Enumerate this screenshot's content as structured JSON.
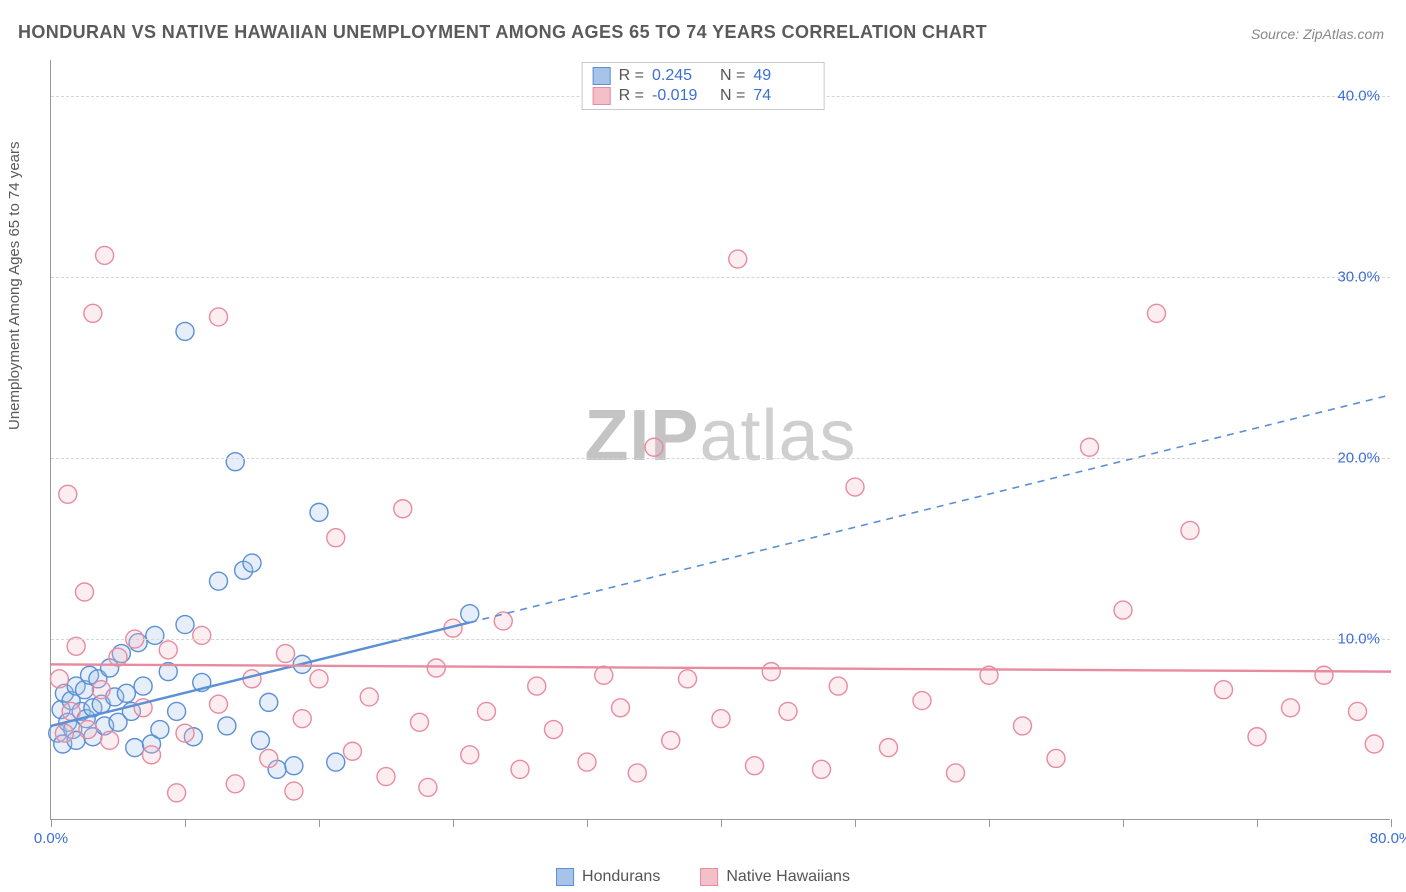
{
  "title": "HONDURAN VS NATIVE HAWAIIAN UNEMPLOYMENT AMONG AGES 65 TO 74 YEARS CORRELATION CHART",
  "source": "Source: ZipAtlas.com",
  "ylabel": "Unemployment Among Ages 65 to 74 years",
  "watermark_zip": "ZIP",
  "watermark_atlas": "atlas",
  "chart": {
    "type": "scatter",
    "background_color": "#ffffff",
    "grid_color": "#d6d6d6",
    "axis_color": "#999999",
    "label_color": "#5a5a5a",
    "tick_font_color": "#3b6fd6",
    "tick_fontsize": 15,
    "label_fontsize": 15,
    "title_fontsize": 18,
    "marker_radius": 9,
    "marker_fill_opacity": 0.28,
    "marker_stroke_width": 1.4,
    "xlim": [
      0,
      80
    ],
    "ylim": [
      0,
      42
    ],
    "y_ticks": [
      10,
      20,
      30,
      40
    ],
    "y_tick_labels": [
      "10.0%",
      "20.0%",
      "30.0%",
      "40.0%"
    ],
    "x_ticks": [
      0,
      8,
      16,
      24,
      32,
      40,
      48,
      56,
      64,
      72,
      80
    ],
    "x_end_labels": {
      "0": "0.0%",
      "80": "80.0%"
    }
  },
  "series": [
    {
      "name": "Hondurans",
      "stroke": "#5b8fd6",
      "fill": "#a7c4e8",
      "R": "0.245",
      "N": "49",
      "trend": {
        "x1": 0,
        "y1": 5.2,
        "x2": 80,
        "y2": 23.5,
        "solid_until_x": 25
      },
      "points": [
        [
          0.4,
          4.8
        ],
        [
          0.6,
          6.1
        ],
        [
          0.7,
          4.2
        ],
        [
          0.8,
          7.0
        ],
        [
          1.0,
          5.4
        ],
        [
          1.2,
          6.6
        ],
        [
          1.3,
          5.0
        ],
        [
          1.5,
          7.4
        ],
        [
          1.5,
          4.4
        ],
        [
          1.8,
          6.0
        ],
        [
          2.0,
          7.2
        ],
        [
          2.1,
          5.6
        ],
        [
          2.3,
          8.0
        ],
        [
          2.5,
          6.2
        ],
        [
          2.5,
          4.6
        ],
        [
          2.8,
          7.8
        ],
        [
          3.0,
          6.4
        ],
        [
          3.2,
          5.2
        ],
        [
          3.5,
          8.4
        ],
        [
          3.8,
          6.8
        ],
        [
          4.0,
          5.4
        ],
        [
          4.2,
          9.2
        ],
        [
          4.5,
          7.0
        ],
        [
          4.8,
          6.0
        ],
        [
          5.0,
          4.0
        ],
        [
          5.2,
          9.8
        ],
        [
          5.5,
          7.4
        ],
        [
          6.0,
          4.2
        ],
        [
          6.2,
          10.2
        ],
        [
          6.5,
          5.0
        ],
        [
          7.0,
          8.2
        ],
        [
          7.5,
          6.0
        ],
        [
          8.0,
          10.8
        ],
        [
          8.0,
          27.0
        ],
        [
          8.5,
          4.6
        ],
        [
          9.0,
          7.6
        ],
        [
          10.0,
          13.2
        ],
        [
          10.5,
          5.2
        ],
        [
          11.0,
          19.8
        ],
        [
          11.5,
          13.8
        ],
        [
          12.0,
          14.2
        ],
        [
          12.5,
          4.4
        ],
        [
          13.0,
          6.5
        ],
        [
          13.5,
          2.8
        ],
        [
          14.5,
          3.0
        ],
        [
          15.0,
          8.6
        ],
        [
          16.0,
          17.0
        ],
        [
          17.0,
          3.2
        ],
        [
          25.0,
          11.4
        ]
      ]
    },
    {
      "name": "Native Hawaiians",
      "stroke": "#e88ba0",
      "fill": "#f3bfc9",
      "R": "-0.019",
      "N": "74",
      "trend": {
        "x1": 0,
        "y1": 8.6,
        "x2": 80,
        "y2": 8.2,
        "solid_until_x": 80
      },
      "points": [
        [
          0.5,
          7.8
        ],
        [
          0.8,
          4.8
        ],
        [
          1.0,
          18.0
        ],
        [
          1.2,
          6.0
        ],
        [
          1.5,
          9.6
        ],
        [
          2.0,
          12.6
        ],
        [
          2.2,
          5.0
        ],
        [
          2.5,
          28.0
        ],
        [
          3.0,
          7.2
        ],
        [
          3.2,
          31.2
        ],
        [
          3.5,
          4.4
        ],
        [
          4.0,
          9.0
        ],
        [
          5.0,
          10.0
        ],
        [
          5.5,
          6.2
        ],
        [
          6.0,
          3.6
        ],
        [
          7.0,
          9.4
        ],
        [
          7.5,
          1.5
        ],
        [
          8.0,
          4.8
        ],
        [
          9.0,
          10.2
        ],
        [
          10.0,
          6.4
        ],
        [
          10.0,
          27.8
        ],
        [
          11.0,
          2.0
        ],
        [
          12.0,
          7.8
        ],
        [
          13.0,
          3.4
        ],
        [
          14.0,
          9.2
        ],
        [
          14.5,
          1.6
        ],
        [
          15.0,
          5.6
        ],
        [
          16.0,
          7.8
        ],
        [
          17.0,
          15.6
        ],
        [
          18.0,
          3.8
        ],
        [
          19.0,
          6.8
        ],
        [
          20.0,
          2.4
        ],
        [
          21.0,
          17.2
        ],
        [
          22.0,
          5.4
        ],
        [
          22.5,
          1.8
        ],
        [
          23.0,
          8.4
        ],
        [
          24.0,
          10.6
        ],
        [
          25.0,
          3.6
        ],
        [
          26.0,
          6.0
        ],
        [
          27.0,
          11.0
        ],
        [
          28.0,
          2.8
        ],
        [
          29.0,
          7.4
        ],
        [
          30.0,
          5.0
        ],
        [
          32.0,
          3.2
        ],
        [
          33.0,
          8.0
        ],
        [
          34.0,
          6.2
        ],
        [
          35.0,
          2.6
        ],
        [
          36.0,
          20.6
        ],
        [
          37.0,
          4.4
        ],
        [
          38.0,
          7.8
        ],
        [
          40.0,
          5.6
        ],
        [
          41.0,
          31.0
        ],
        [
          42.0,
          3.0
        ],
        [
          43.0,
          8.2
        ],
        [
          44.0,
          6.0
        ],
        [
          46.0,
          2.8
        ],
        [
          47.0,
          7.4
        ],
        [
          48.0,
          18.4
        ],
        [
          50.0,
          4.0
        ],
        [
          52.0,
          6.6
        ],
        [
          54.0,
          2.6
        ],
        [
          56.0,
          8.0
        ],
        [
          58.0,
          5.2
        ],
        [
          60.0,
          3.4
        ],
        [
          62.0,
          20.6
        ],
        [
          64.0,
          11.6
        ],
        [
          66.0,
          28.0
        ],
        [
          68.0,
          16.0
        ],
        [
          70.0,
          7.2
        ],
        [
          72.0,
          4.6
        ],
        [
          74.0,
          6.2
        ],
        [
          76.0,
          8.0
        ],
        [
          78.0,
          6.0
        ],
        [
          79.0,
          4.2
        ]
      ]
    }
  ],
  "legend": {
    "R_label": "R =",
    "N_label": "N ="
  }
}
